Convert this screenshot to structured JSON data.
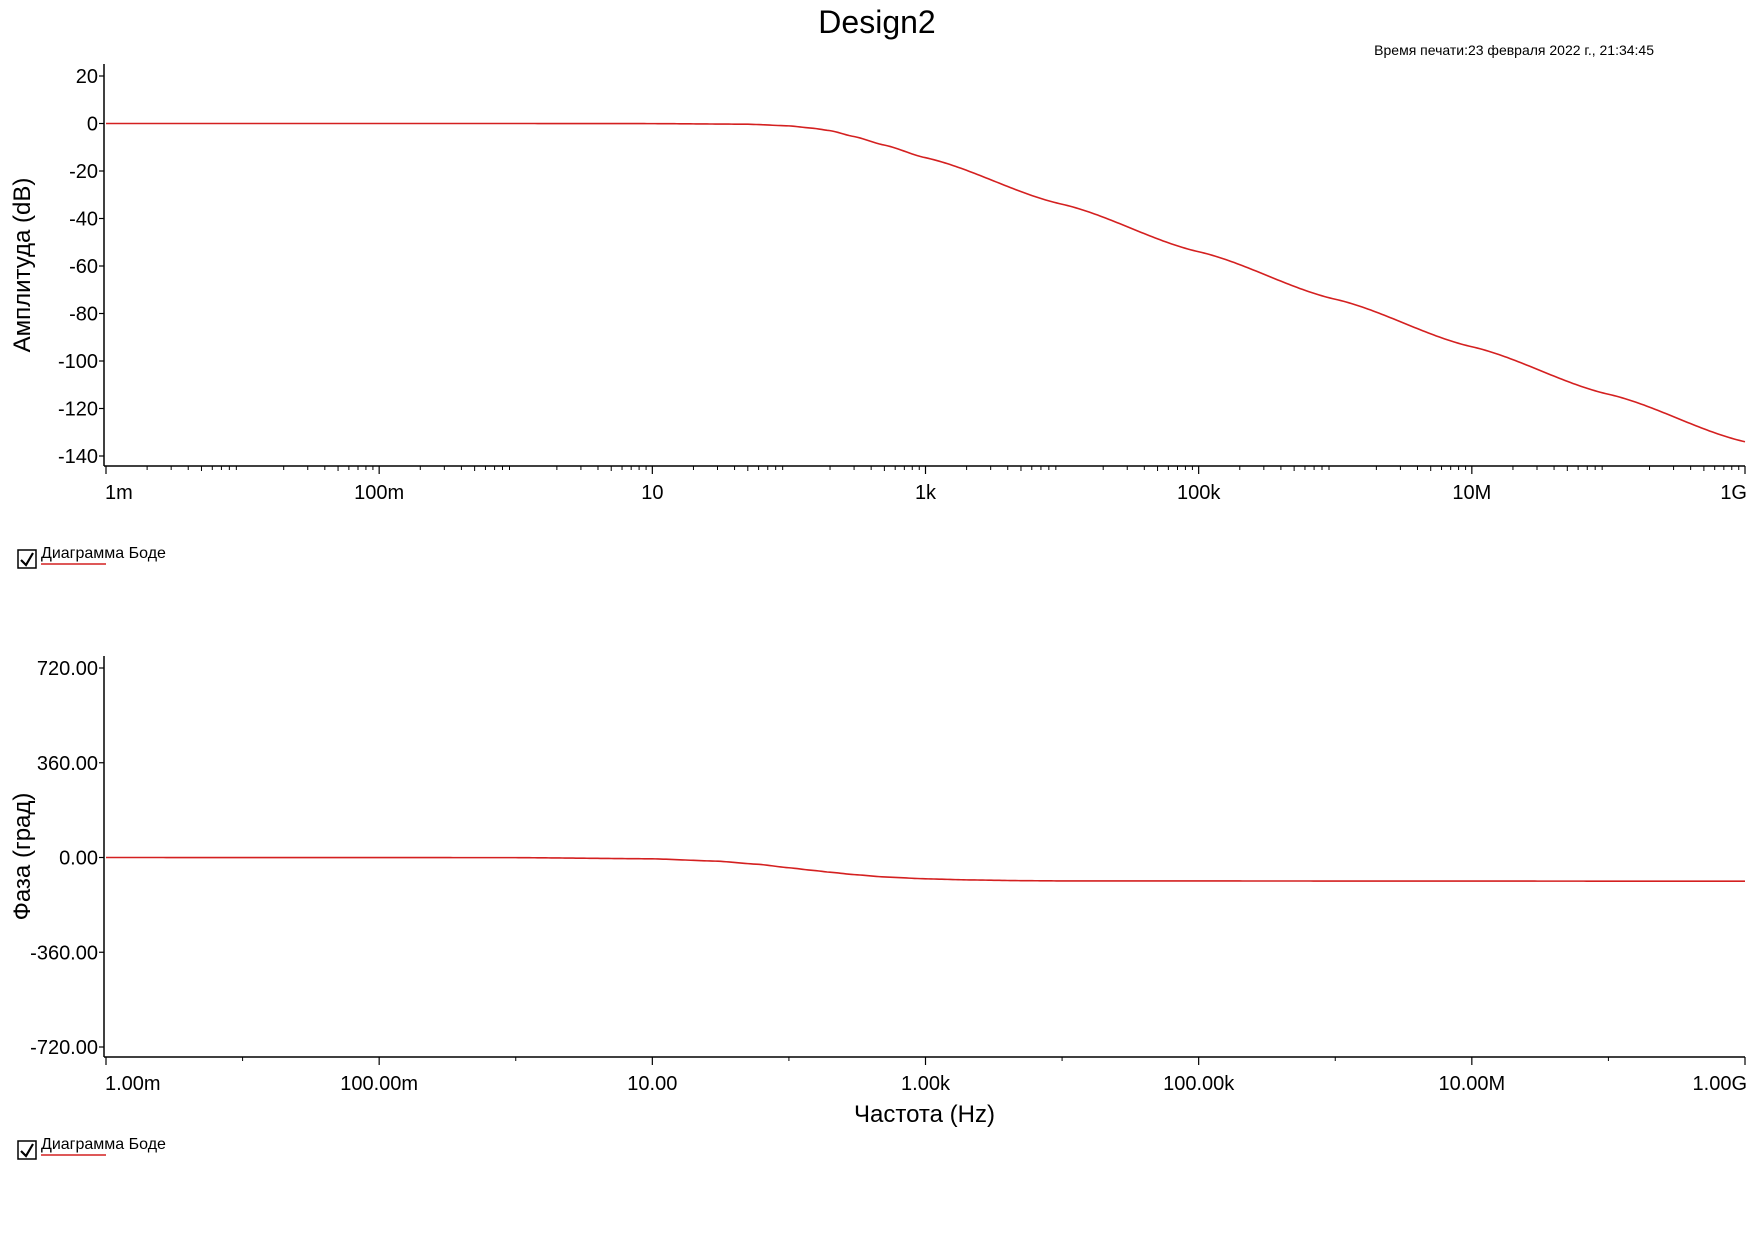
{
  "page": {
    "title": "Design2",
    "print_time": "Время печати:23 февраля 2022 г., 21:34:45"
  },
  "colors": {
    "series": "#d42020",
    "axis": "#000000"
  },
  "chart_data": [
    {
      "type": "line",
      "name": "magnitude",
      "ylabel": "Амплитуда (dB)",
      "xlabel": "",
      "xscale": "log",
      "xlim": [
        0.001,
        1000000000
      ],
      "ylim": [
        -140,
        20
      ],
      "x_ticks": [
        0.001,
        0.1,
        10,
        1000,
        100000,
        10000000,
        1000000000
      ],
      "x_tick_labels": [
        "1m",
        "100m",
        "10",
        "1k",
        "100k",
        "10M",
        "1G"
      ],
      "y_ticks": [
        20,
        0,
        -20,
        -40,
        -60,
        -80,
        -100,
        -120,
        -140
      ],
      "y_tick_labels": [
        "20",
        "0",
        "-20",
        "-40",
        "-60",
        "-80",
        "-100",
        "-120",
        "-140"
      ],
      "legend": {
        "label": "Диаграмма Боде",
        "position": "bottom-left",
        "checked": true
      },
      "series": [
        {
          "name": "Диаграмма Боде",
          "x": [
            0.001,
            1,
            10,
            50,
            100,
            150,
            200,
            300,
            500,
            1000,
            10000,
            100000,
            1000000,
            10000000,
            100000000,
            1000000000
          ],
          "y": [
            0,
            0,
            -0.05,
            -0.3,
            -1,
            -2,
            -3,
            -5.5,
            -9.1,
            -14.4,
            -34.0,
            -54.0,
            -74.0,
            -94.0,
            -114.0,
            -134.0
          ]
        }
      ]
    },
    {
      "type": "line",
      "name": "phase",
      "ylabel": "Фаза (град)",
      "xlabel": "Частота (Hz)",
      "xscale": "log",
      "xlim": [
        0.001,
        1000000000
      ],
      "ylim": [
        -720,
        720
      ],
      "x_ticks": [
        0.001,
        0.1,
        10,
        1000,
        100000,
        10000000,
        1000000000
      ],
      "x_tick_labels": [
        "1.00m",
        "100.00m",
        "10.00",
        "1.00k",
        "100.00k",
        "10.00M",
        "1.00G"
      ],
      "y_ticks": [
        720,
        360,
        0,
        -360,
        -720
      ],
      "y_tick_labels": [
        "720.00",
        "360.00",
        "0.00",
        "-360.00",
        "-720.00"
      ],
      "legend": {
        "label": "Диаграмма Боде",
        "position": "bottom-left",
        "checked": true
      },
      "series": [
        {
          "name": "Диаграмма Боде",
          "x": [
            0.001,
            1,
            10,
            30,
            60,
            100,
            150,
            200,
            300,
            500,
            1000,
            2000,
            5000,
            10000,
            1000000000
          ],
          "y": [
            0,
            -0.5,
            -5,
            -14,
            -26,
            -39,
            -49,
            -56,
            -65,
            -74,
            -81,
            -85,
            -88,
            -89,
            -90
          ]
        }
      ]
    }
  ]
}
